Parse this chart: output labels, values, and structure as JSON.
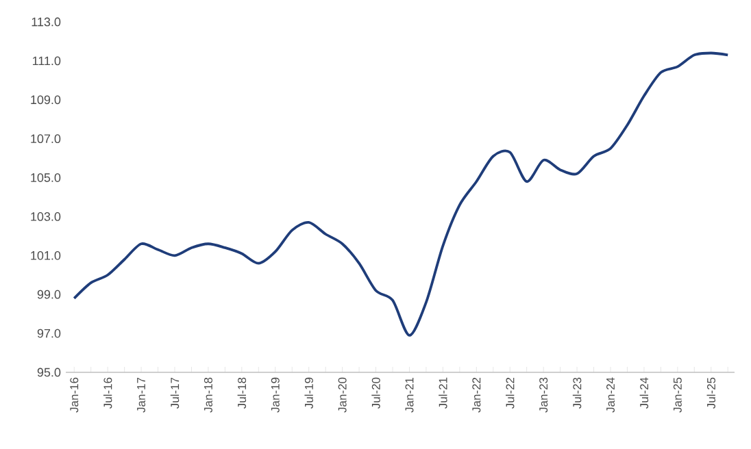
{
  "chart_data": {
    "type": "line",
    "categories": [
      "Jan-16",
      null,
      "Jul-16",
      null,
      "Jan-17",
      null,
      "Jul-17",
      null,
      "Jan-18",
      null,
      "Jul-18",
      null,
      "Jan-19",
      null,
      "Jul-19",
      null,
      "Jan-20",
      null,
      "Jul-20",
      null,
      "Jan-21",
      null,
      "Jul-21",
      null,
      "Jan-22",
      null,
      "Jul-22",
      null,
      "Jan-23",
      null,
      "Jul-23",
      null,
      "Jan-24",
      null,
      "Jul-24",
      null,
      "Jan-25",
      null,
      "Jul-25",
      null
    ],
    "series": [
      {
        "color": "#1f3d7a",
        "values": [
          98.8,
          99.6,
          100.0,
          100.8,
          101.6,
          101.3,
          101.0,
          101.4,
          101.6,
          101.4,
          101.1,
          100.6,
          101.2,
          102.3,
          102.7,
          102.1,
          101.6,
          100.6,
          99.2,
          98.7,
          96.9,
          98.6,
          101.5,
          103.6,
          104.8,
          106.1,
          106.3,
          104.8,
          105.9,
          105.4,
          105.2,
          106.1,
          106.5,
          107.7,
          109.2,
          110.4,
          110.7,
          111.3,
          111.4,
          111.3
        ]
      }
    ],
    "ylim": [
      95,
      113
    ],
    "yticks": [
      {
        "value": 95,
        "label": "95.0"
      },
      {
        "value": 97,
        "label": "97.0"
      },
      {
        "value": 99,
        "label": "99.0"
      },
      {
        "value": 101,
        "label": "101.0"
      },
      {
        "value": 103,
        "label": "103.0"
      },
      {
        "value": 105,
        "label": "105.0"
      },
      {
        "value": 107,
        "label": "107.0"
      },
      {
        "value": 109,
        "label": "109.0"
      },
      {
        "value": 111,
        "label": "111.0"
      },
      {
        "value": 113,
        "label": "113.0"
      }
    ],
    "grid": false,
    "legend": false,
    "marker": "none",
    "line_style": "solid"
  }
}
